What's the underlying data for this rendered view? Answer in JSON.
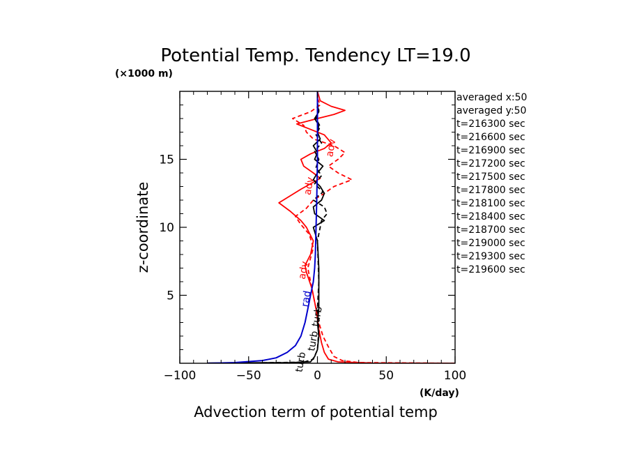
{
  "chart_data": {
    "type": "line",
    "title": "Potential Temp. Tendency LT=19.0",
    "xlabel": "Advection term of potential temp",
    "x_unit": "(K/day)",
    "ylabel": "z-coordinate",
    "y_unit": "(×1000 m)",
    "xlim": [
      -100,
      100
    ],
    "ylim": [
      0,
      20
    ],
    "x_ticks": [
      -100,
      -50,
      0,
      50,
      100
    ],
    "x_tick_labels": [
      "−100",
      "−50",
      "0",
      "50",
      "100"
    ],
    "y_ticks": [
      5,
      10,
      15
    ],
    "y_tick_labels": [
      "5",
      "10",
      "15"
    ],
    "colors": {
      "red": "#ff0000",
      "black": "#000000",
      "blue": "#0000cc"
    },
    "legend_lines": [
      "averaged  x:50",
      "averaged  y:50",
      "t=216300 sec",
      "t=216600 sec",
      "t=216900 sec",
      "t=217200 sec",
      "t=217500 sec",
      "t=217800 sec",
      "t=218100 sec",
      "t=218400 sec",
      "t=218700 sec",
      "t=219000 sec",
      "t=219300 sec",
      "t=219600 sec"
    ],
    "curve_labels": [
      {
        "text": "adv",
        "x": 12,
        "y": 15.8,
        "color": "#ff0000"
      },
      {
        "text": "adv",
        "x": -4,
        "y": 13.0,
        "color": "#ff0000"
      },
      {
        "text": "adv",
        "x": -8,
        "y": 6.8,
        "color": "#ff0000"
      },
      {
        "text": "rad",
        "x": -6,
        "y": 4.7,
        "color": "#0000cc"
      },
      {
        "text": "turb",
        "x": 2,
        "y": 3.4,
        "color": "#000000"
      },
      {
        "text": "turb",
        "x": -1,
        "y": 1.6,
        "color": "#000000"
      },
      {
        "text": "turb",
        "x": -10,
        "y": 0.05,
        "color": "#000000"
      }
    ],
    "series": [
      {
        "style": "solid",
        "color": "#ff0000",
        "points": [
          [
            100,
            0
          ],
          [
            40,
            0.02
          ],
          [
            15,
            0.1
          ],
          [
            8,
            0.3
          ],
          [
            5,
            0.8
          ],
          [
            3,
            1.5
          ],
          [
            1,
            2.5
          ],
          [
            -1,
            4
          ],
          [
            -4,
            5.5
          ],
          [
            -8,
            6.7
          ],
          [
            -9,
            7.2
          ],
          [
            -5,
            8
          ],
          [
            -3,
            9
          ],
          [
            -8,
            10
          ],
          [
            -12,
            10.5
          ],
          [
            -20,
            11.2
          ],
          [
            -28,
            11.8
          ],
          [
            -20,
            12.3
          ],
          [
            -12,
            12.8
          ],
          [
            -5,
            13.2
          ],
          [
            2,
            13.6
          ],
          [
            -3,
            14
          ],
          [
            -10,
            14.5
          ],
          [
            -12,
            15
          ],
          [
            -5,
            15.4
          ],
          [
            5,
            15.8
          ],
          [
            10,
            16.2
          ],
          [
            5,
            16.8
          ],
          [
            -5,
            17.2
          ],
          [
            -15,
            17.6
          ],
          [
            0,
            18
          ],
          [
            12,
            18.3
          ],
          [
            20,
            18.6
          ],
          [
            10,
            18.9
          ],
          [
            2,
            19.3
          ],
          [
            0,
            20
          ]
        ]
      },
      {
        "style": "dashed",
        "color": "#ff0000",
        "points": [
          [
            100,
            0
          ],
          [
            30,
            0.05
          ],
          [
            18,
            0.2
          ],
          [
            12,
            0.5
          ],
          [
            8,
            1.2
          ],
          [
            4,
            2
          ],
          [
            1,
            3
          ],
          [
            -2,
            4.5
          ],
          [
            -5,
            6
          ],
          [
            -7,
            7
          ],
          [
            -3,
            8.5
          ],
          [
            -6,
            9.5
          ],
          [
            -12,
            10.2
          ],
          [
            -16,
            10.8
          ],
          [
            -8,
            11.4
          ],
          [
            -3,
            12
          ],
          [
            5,
            12.5
          ],
          [
            12,
            13
          ],
          [
            25,
            13.5
          ],
          [
            15,
            14
          ],
          [
            8,
            14.5
          ],
          [
            15,
            15
          ],
          [
            20,
            15.5
          ],
          [
            12,
            16
          ],
          [
            -3,
            16.5
          ],
          [
            -8,
            17
          ],
          [
            -10,
            17.5
          ],
          [
            -18,
            18
          ],
          [
            -5,
            18.5
          ],
          [
            2,
            19
          ],
          [
            0,
            19.5
          ],
          [
            0,
            20
          ]
        ]
      },
      {
        "style": "solid",
        "color": "#000000",
        "points": [
          [
            -80,
            0.02
          ],
          [
            -20,
            0.05
          ],
          [
            -5,
            0.1
          ],
          [
            -2,
            0.5
          ],
          [
            0,
            1
          ],
          [
            1,
            2
          ],
          [
            0,
            3
          ],
          [
            1,
            4
          ],
          [
            1,
            5
          ],
          [
            1,
            7
          ],
          [
            0,
            9
          ],
          [
            -3,
            10
          ],
          [
            5,
            10.5
          ],
          [
            -2,
            11
          ],
          [
            -3,
            11.5
          ],
          [
            3,
            12
          ],
          [
            5,
            12.5
          ],
          [
            2,
            13
          ],
          [
            -3,
            13.5
          ],
          [
            0,
            14
          ],
          [
            4,
            14.5
          ],
          [
            -2,
            15
          ],
          [
            0,
            15.5
          ],
          [
            -3,
            16
          ],
          [
            2,
            16.5
          ],
          [
            0,
            17
          ],
          [
            1,
            17.5
          ],
          [
            -2,
            18
          ],
          [
            1,
            18.5
          ],
          [
            0,
            19
          ],
          [
            0,
            20
          ]
        ]
      },
      {
        "style": "dashed",
        "color": "#000000",
        "points": [
          [
            -50,
            0.02
          ],
          [
            -10,
            0.08
          ],
          [
            -3,
            0.3
          ],
          [
            0,
            1
          ],
          [
            1,
            2.5
          ],
          [
            0,
            4
          ],
          [
            1,
            6
          ],
          [
            0,
            9
          ],
          [
            3,
            10.5
          ],
          [
            7,
            11
          ],
          [
            5,
            11.5
          ],
          [
            -3,
            12
          ],
          [
            4,
            12.6
          ],
          [
            -2,
            13.2
          ],
          [
            3,
            13.8
          ],
          [
            -1,
            14.4
          ],
          [
            1,
            15
          ],
          [
            -2,
            15.6
          ],
          [
            3,
            16.2
          ],
          [
            -1,
            16.8
          ],
          [
            2,
            17.4
          ],
          [
            -1,
            18
          ],
          [
            1,
            18.6
          ],
          [
            0,
            19.2
          ],
          [
            0,
            20
          ]
        ]
      },
      {
        "style": "solid",
        "color": "#0000cc",
        "points": [
          [
            -80,
            0
          ],
          [
            -60,
            0.05
          ],
          [
            -40,
            0.2
          ],
          [
            -30,
            0.4
          ],
          [
            -22,
            0.8
          ],
          [
            -16,
            1.3
          ],
          [
            -12,
            2
          ],
          [
            -9,
            3
          ],
          [
            -7,
            4
          ],
          [
            -5,
            5
          ],
          [
            -3,
            6
          ],
          [
            -2,
            7
          ],
          [
            -1.5,
            8
          ],
          [
            -1,
            10
          ],
          [
            -0.5,
            12
          ],
          [
            0,
            15
          ],
          [
            0,
            18
          ],
          [
            0,
            20
          ]
        ]
      }
    ]
  }
}
